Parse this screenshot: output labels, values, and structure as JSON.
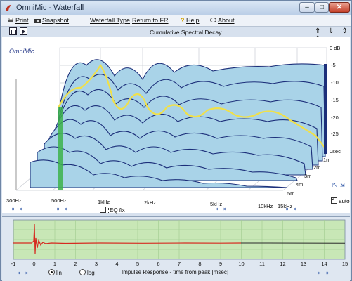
{
  "window": {
    "title": "OmniMic - Waterfall",
    "minimize": "–",
    "maximize": "□",
    "close": "✕"
  },
  "menu": {
    "print": "Print",
    "snapshot": "Snapshot",
    "waterfall_type": "Waterfall Type",
    "return_fr": "Return to FR",
    "help": "Help",
    "about": "About",
    "help_glyph": "?"
  },
  "toolbar": {
    "chart_title": "Cumulative Spectral Decay",
    "nav_arrows": "⇑ ⇓ ⇕ ⇕"
  },
  "brand": "OmniMic",
  "db_labels": [
    "0 dB",
    "-5",
    "-10",
    "-15",
    "-20",
    "-25"
  ],
  "time_labels": [
    "0sec",
    "1m",
    "2m",
    "3m",
    "4m",
    "5m"
  ],
  "freq_labels": [
    "300Hz",
    "500Hz",
    "1kHz",
    "2kHz",
    "5kHz",
    "10kHz",
    "15kHz"
  ],
  "eq": {
    "label": "EQ fix"
  },
  "auto": {
    "label": "auto"
  },
  "shift_glyph": "⇤⇥",
  "zoom_glyph": "⇱ ⇲",
  "impulse": {
    "title": "Impulse Response  - time from peak [msec]",
    "x_ticks": [
      "-1",
      "0",
      "1",
      "2",
      "3",
      "4",
      "5",
      "6",
      "7",
      "8",
      "9",
      "10",
      "11",
      "12",
      "13",
      "14",
      "15"
    ],
    "lin": "lin",
    "log": "log",
    "selected": "lin"
  },
  "colors": {
    "waterfall_fill": "#a9d3e8",
    "waterfall_line": "#1c2f7a",
    "highlight_trace": "#f0e04a",
    "impulse_bg": "#c8e7b6",
    "impulse_trace": "#d62a20",
    "green_bar": "#3cb14a"
  }
}
